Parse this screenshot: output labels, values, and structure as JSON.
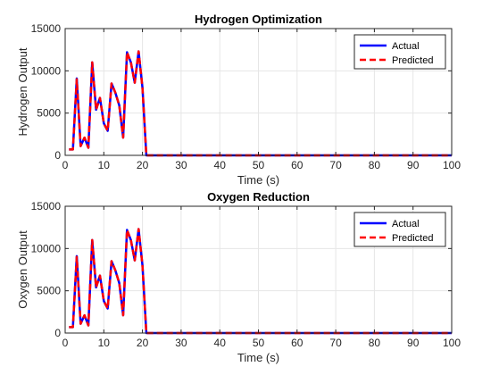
{
  "chart_data": [
    {
      "type": "line",
      "title": "Hydrogen Optimization",
      "xlabel": "Time (s)",
      "ylabel": "Hydrogen Output",
      "xlim": [
        0,
        100
      ],
      "ylim": [
        0,
        15000
      ],
      "xticks": [
        0,
        10,
        20,
        30,
        40,
        50,
        60,
        70,
        80,
        90,
        100
      ],
      "yticks": [
        0,
        5000,
        10000,
        15000
      ],
      "grid": true,
      "legend_position": "top-right",
      "x": [
        1,
        2,
        3,
        4,
        5,
        6,
        7,
        8,
        9,
        10,
        11,
        12,
        13,
        14,
        15,
        16,
        17,
        18,
        19,
        20,
        21,
        22,
        30,
        40,
        50,
        60,
        70,
        80,
        90,
        100
      ],
      "series": [
        {
          "name": "Actual",
          "color": "#0000ff",
          "style": "solid",
          "values": [
            700,
            700,
            9100,
            1100,
            2100,
            900,
            11000,
            5400,
            6800,
            3800,
            2900,
            8500,
            7400,
            5900,
            2100,
            12200,
            11000,
            8600,
            12300,
            8000,
            0,
            0,
            0,
            0,
            0,
            0,
            0,
            0,
            0,
            0
          ]
        },
        {
          "name": "Predicted",
          "color": "#ff0000",
          "style": "dashed",
          "values": [
            700,
            700,
            9000,
            1100,
            2100,
            900,
            11000,
            5400,
            6800,
            3800,
            2900,
            8500,
            7400,
            5900,
            2100,
            12200,
            11000,
            8600,
            12300,
            8000,
            0,
            0,
            0,
            0,
            0,
            0,
            0,
            0,
            0,
            0
          ]
        }
      ]
    },
    {
      "type": "line",
      "title": "Oxygen Reduction",
      "xlabel": "Time (s)",
      "ylabel": "Oxygen Output",
      "xlim": [
        0,
        100
      ],
      "ylim": [
        0,
        15000
      ],
      "xticks": [
        0,
        10,
        20,
        30,
        40,
        50,
        60,
        70,
        80,
        90,
        100
      ],
      "yticks": [
        0,
        5000,
        10000,
        15000
      ],
      "grid": true,
      "legend_position": "top-right",
      "x": [
        1,
        2,
        3,
        4,
        5,
        6,
        7,
        8,
        9,
        10,
        11,
        12,
        13,
        14,
        15,
        16,
        17,
        18,
        19,
        20,
        21,
        22,
        30,
        40,
        50,
        60,
        70,
        80,
        90,
        100
      ],
      "series": [
        {
          "name": "Actual",
          "color": "#0000ff",
          "style": "solid",
          "values": [
            700,
            700,
            9100,
            1100,
            2100,
            900,
            11000,
            5400,
            6800,
            3800,
            2900,
            8500,
            7400,
            5900,
            2100,
            12200,
            11000,
            8600,
            12300,
            8000,
            0,
            0,
            0,
            0,
            0,
            0,
            0,
            0,
            0,
            0
          ]
        },
        {
          "name": "Predicted",
          "color": "#ff0000",
          "style": "dashed",
          "values": [
            700,
            700,
            9000,
            1100,
            2100,
            900,
            11000,
            5400,
            6800,
            3800,
            2900,
            8500,
            7400,
            5900,
            2100,
            12200,
            11000,
            8600,
            12300,
            8000,
            0,
            0,
            0,
            0,
            0,
            0,
            0,
            0,
            0,
            0
          ]
        }
      ]
    }
  ]
}
